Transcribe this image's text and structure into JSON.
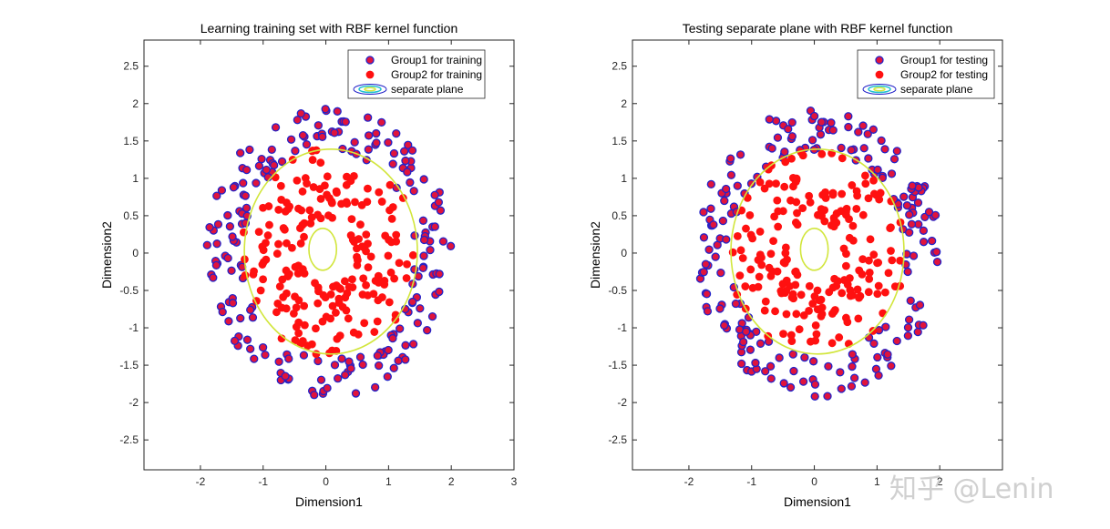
{
  "watermark": "知乎 @Lenin",
  "colors": {
    "group1_fill": "#e0143c",
    "group1_edge": "#2323c8",
    "group2_fill": "#ff1010",
    "contour_outer": "#1e1ec8",
    "contour_mid": "#20c0d0",
    "contour_inner": "#d2e63c",
    "axis": "#262626"
  },
  "chart_data": [
    {
      "type": "scatter",
      "title": "Learning training set with RBF kernel function",
      "xlabel": "Dimension1",
      "ylabel": "Dimension2",
      "xlim": [
        -2.9,
        3.0
      ],
      "ylim": [
        -2.9,
        2.85
      ],
      "xticks": [
        -2,
        -1,
        0,
        1,
        2,
        3
      ],
      "yticks": [
        2.5,
        2,
        1.5,
        1,
        0.5,
        0,
        -0.5,
        -1,
        -1.5,
        -2,
        -2.5
      ],
      "legend": {
        "position": "top-right",
        "entries": [
          "Group1 for training",
          "Group2 for training",
          "separate plane"
        ]
      },
      "series": [
        {
          "name": "Group1 for training",
          "role": "group1",
          "generator": {
            "count": 200,
            "rmin": 1.38,
            "rmax": 1.95,
            "seed": 7
          }
        },
        {
          "name": "Group2 for training",
          "role": "group2",
          "generator": {
            "count": 200,
            "rmin": 0.42,
            "rmax": 1.4,
            "seed": 11
          }
        }
      ],
      "separate_plane": {
        "outer_boundary": {
          "cx": 0.08,
          "cy": 0.02,
          "rx": 1.38,
          "ry": 1.37
        },
        "inner_boundary": {
          "cx": -0.05,
          "cy": 0.05,
          "rx": 0.22,
          "ry": 0.28
        }
      }
    },
    {
      "type": "scatter",
      "title": "Testing separate plane with RBF kernel function",
      "xlabel": "Dimension1",
      "ylabel": "Dimension2",
      "xlim": [
        -2.9,
        3.0
      ],
      "ylim": [
        -2.9,
        2.85
      ],
      "xticks": [
        -2,
        -1,
        0,
        1,
        2
      ],
      "yticks": [
        2.5,
        2,
        1.5,
        1,
        0.5,
        0,
        -0.5,
        -1,
        -1.5,
        -2,
        -2.5
      ],
      "legend": {
        "position": "top-right",
        "entries": [
          "Group1 for testing",
          "Group2 for testing",
          "separate plane"
        ]
      },
      "series": [
        {
          "name": "Group1 for testing",
          "role": "group1",
          "generator": {
            "count": 200,
            "rmin": 1.38,
            "rmax": 1.95,
            "seed": 23
          }
        },
        {
          "name": "Group2 for testing",
          "role": "group2",
          "generator": {
            "count": 200,
            "rmin": 0.42,
            "rmax": 1.4,
            "seed": 31
          }
        }
      ],
      "separate_plane": {
        "outer_boundary": {
          "cx": 0.05,
          "cy": 0.02,
          "rx": 1.38,
          "ry": 1.37
        },
        "inner_boundary": {
          "cx": 0.0,
          "cy": 0.05,
          "rx": 0.22,
          "ry": 0.28
        }
      }
    }
  ]
}
